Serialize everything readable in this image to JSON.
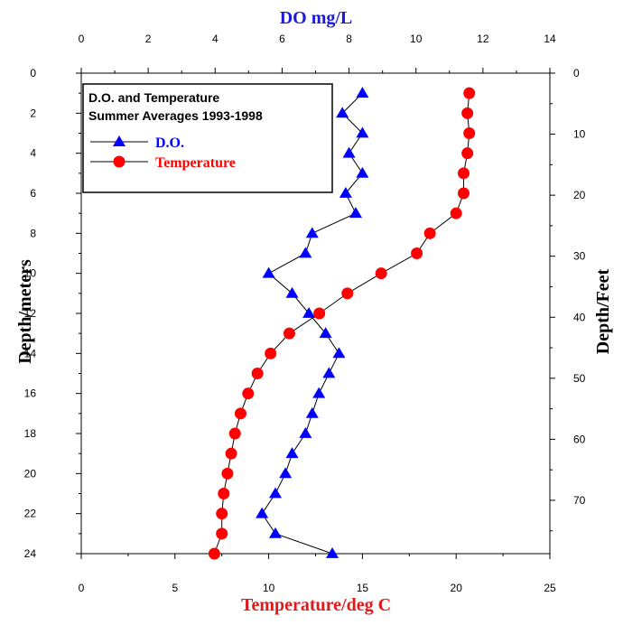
{
  "chart_data": {
    "type": "line",
    "orientation": "y-depth",
    "grid": false,
    "legend_position": "top-left",
    "legend_title_lines": [
      "D.O. and Temperature",
      "Summer Averages 1993-1998"
    ],
    "axes": {
      "left": {
        "label": "Depth/meters",
        "range": [
          0,
          24
        ],
        "ticks": [
          0,
          2,
          4,
          6,
          8,
          10,
          12,
          14,
          16,
          18,
          20,
          22,
          24
        ],
        "inverted": true
      },
      "right": {
        "label": "Depth/Feet",
        "range": [
          0,
          78.74
        ],
        "ticks": [
          0,
          10,
          20,
          30,
          40,
          50,
          60,
          70
        ],
        "inverted": true
      },
      "top": {
        "label": "DO mg/L",
        "range": [
          0,
          14
        ],
        "ticks": [
          0,
          2,
          4,
          6,
          8,
          10,
          12,
          14
        ],
        "color": "#1a1adc"
      },
      "bottom": {
        "label": "Temperature/deg C",
        "range": [
          0,
          25
        ],
        "ticks": [
          0,
          5,
          10,
          15,
          20,
          25
        ],
        "color": "#e01a1a"
      }
    },
    "series": [
      {
        "name": "D.O.",
        "axis": "top",
        "color": "#0000ff",
        "marker": "triangle",
        "points": [
          {
            "depth": 1,
            "value": 8.4
          },
          {
            "depth": 2,
            "value": 7.8
          },
          {
            "depth": 3,
            "value": 8.4
          },
          {
            "depth": 4,
            "value": 8.0
          },
          {
            "depth": 5,
            "value": 8.4
          },
          {
            "depth": 6,
            "value": 7.9
          },
          {
            "depth": 7,
            "value": 8.2
          },
          {
            "depth": 8,
            "value": 6.9
          },
          {
            "depth": 9,
            "value": 6.7
          },
          {
            "depth": 10,
            "value": 5.6
          },
          {
            "depth": 11,
            "value": 6.3
          },
          {
            "depth": 12,
            "value": 6.8
          },
          {
            "depth": 13,
            "value": 7.3
          },
          {
            "depth": 14,
            "value": 7.7
          },
          {
            "depth": 15,
            "value": 7.4
          },
          {
            "depth": 16,
            "value": 7.1
          },
          {
            "depth": 17,
            "value": 6.9
          },
          {
            "depth": 18,
            "value": 6.7
          },
          {
            "depth": 19,
            "value": 6.3
          },
          {
            "depth": 20,
            "value": 6.1
          },
          {
            "depth": 21,
            "value": 5.8
          },
          {
            "depth": 22,
            "value": 5.4
          },
          {
            "depth": 23,
            "value": 5.8
          },
          {
            "depth": 24,
            "value": 7.5
          }
        ]
      },
      {
        "name": "Temperature",
        "axis": "bottom",
        "color": "#ff0000",
        "marker": "circle",
        "points": [
          {
            "depth": 1,
            "value": 20.7
          },
          {
            "depth": 2,
            "value": 20.6
          },
          {
            "depth": 3,
            "value": 20.7
          },
          {
            "depth": 4,
            "value": 20.6
          },
          {
            "depth": 5,
            "value": 20.4
          },
          {
            "depth": 6,
            "value": 20.4
          },
          {
            "depth": 7,
            "value": 20.0
          },
          {
            "depth": 8,
            "value": 18.6
          },
          {
            "depth": 9,
            "value": 17.9
          },
          {
            "depth": 10,
            "value": 16.0
          },
          {
            "depth": 11,
            "value": 14.2
          },
          {
            "depth": 12,
            "value": 12.7
          },
          {
            "depth": 13,
            "value": 11.1
          },
          {
            "depth": 14,
            "value": 10.1
          },
          {
            "depth": 15,
            "value": 9.4
          },
          {
            "depth": 16,
            "value": 8.9
          },
          {
            "depth": 17,
            "value": 8.5
          },
          {
            "depth": 18,
            "value": 8.2
          },
          {
            "depth": 19,
            "value": 8.0
          },
          {
            "depth": 20,
            "value": 7.8
          },
          {
            "depth": 21,
            "value": 7.6
          },
          {
            "depth": 22,
            "value": 7.5
          },
          {
            "depth": 23,
            "value": 7.5
          },
          {
            "depth": 24,
            "value": 7.1
          }
        ]
      }
    ]
  }
}
